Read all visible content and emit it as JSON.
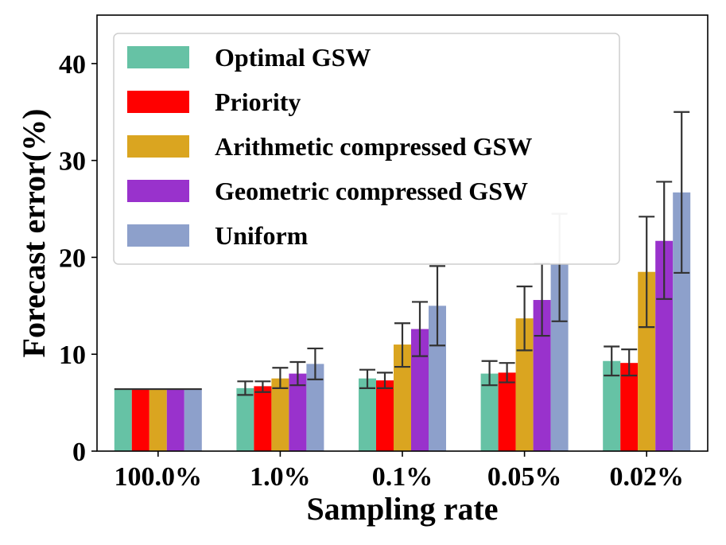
{
  "chart_data": {
    "type": "bar",
    "title": "",
    "xlabel": "Sampling rate",
    "ylabel": "Forecast error(%)",
    "ylim": [
      0,
      45
    ],
    "yticks": [
      0,
      10,
      20,
      30,
      40
    ],
    "ytick_labels": [
      "0",
      "10",
      "20",
      "30",
      "40"
    ],
    "categories": [
      "100.0%",
      "1.0%",
      "0.1%",
      "0.05%",
      "0.02%"
    ],
    "legend_position": "top-left",
    "series": [
      {
        "name": "Optimal GSW",
        "color": "#66c2a5",
        "values": [
          6.4,
          6.5,
          7.5,
          8.0,
          9.3
        ],
        "err_low": [
          6.4,
          5.8,
          6.5,
          6.8,
          7.8
        ],
        "err_high": [
          6.4,
          7.2,
          8.4,
          9.3,
          10.8
        ]
      },
      {
        "name": "Priority",
        "color": "#ff0000",
        "values": [
          6.4,
          6.7,
          7.3,
          8.1,
          9.1
        ],
        "err_low": [
          6.4,
          6.1,
          6.5,
          7.1,
          7.8
        ],
        "err_high": [
          6.4,
          7.2,
          8.1,
          9.1,
          10.5
        ]
      },
      {
        "name": "Arithmetic compressed GSW",
        "color": "#daa520",
        "values": [
          6.4,
          7.5,
          11.0,
          13.7,
          18.5
        ],
        "err_low": [
          6.4,
          6.5,
          8.7,
          10.4,
          12.8
        ],
        "err_high": [
          6.4,
          8.6,
          13.2,
          17.0,
          24.2
        ]
      },
      {
        "name": "Geometric compressed GSW",
        "color": "#9932cc",
        "values": [
          6.4,
          8.0,
          12.6,
          15.6,
          21.7
        ],
        "err_low": [
          6.4,
          6.8,
          9.8,
          11.9,
          15.7
        ],
        "err_high": [
          6.4,
          9.2,
          15.4,
          19.4,
          27.8
        ]
      },
      {
        "name": "Uniform",
        "color": "#8da0cb",
        "values": [
          6.4,
          9.0,
          15.0,
          19.3,
          26.7
        ],
        "err_low": [
          6.4,
          7.4,
          10.9,
          13.4,
          18.4
        ],
        "err_high": [
          6.4,
          10.6,
          19.1,
          24.5,
          35.0
        ]
      }
    ]
  }
}
